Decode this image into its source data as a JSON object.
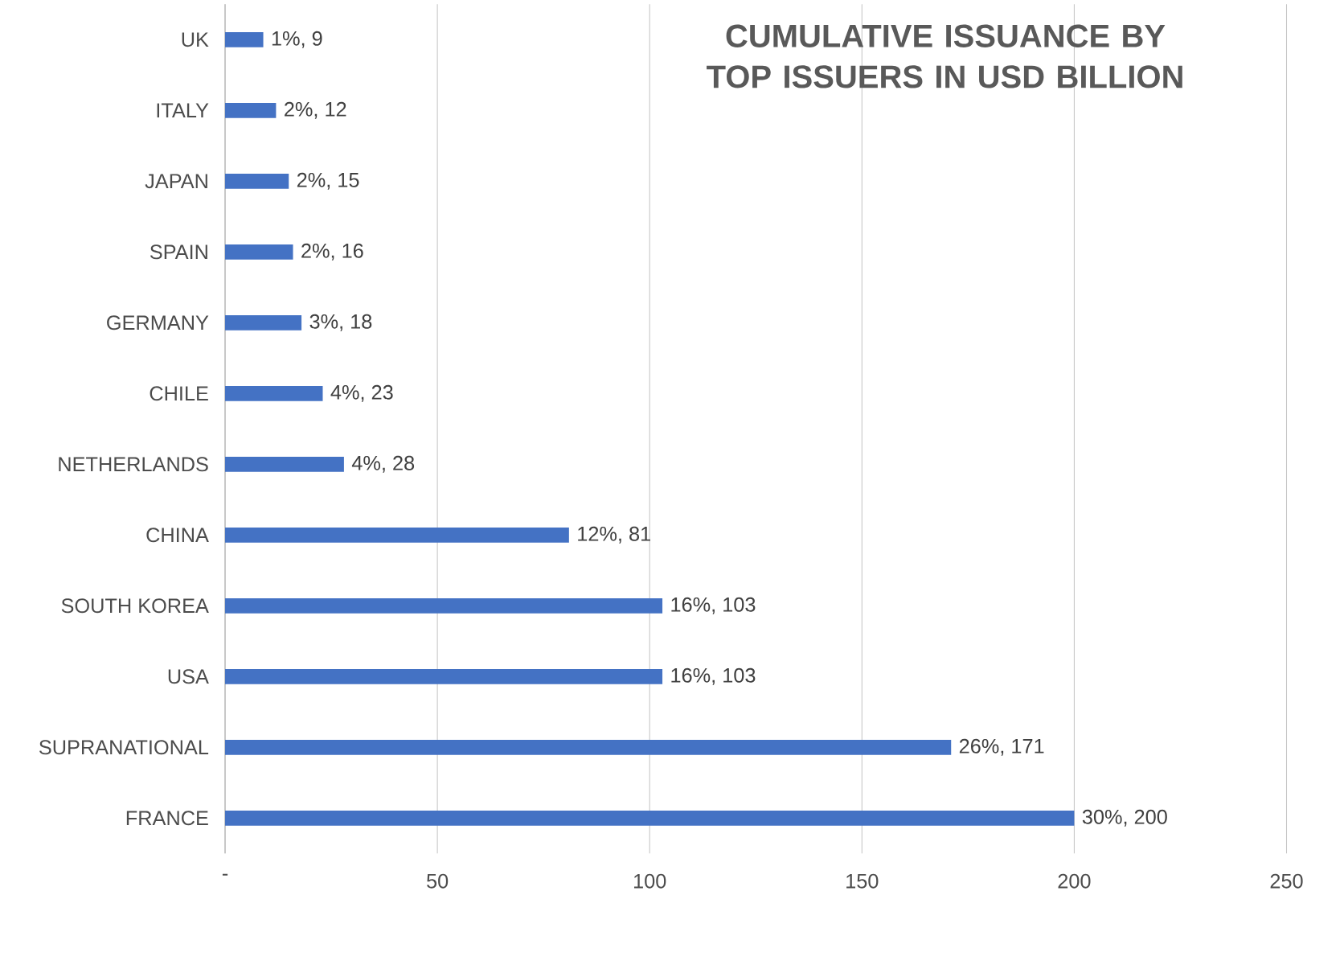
{
  "chart_data": {
    "type": "bar",
    "orientation": "horizontal",
    "title": "CUMULATIVE ISSUANCE BY TOP ISSUERS IN USD BILLION",
    "categories": [
      "UK",
      "ITALY",
      "JAPAN",
      "SPAIN",
      "GERMANY",
      "CHILE",
      "NETHERLANDS",
      "CHINA",
      "SOUTH KOREA",
      "USA",
      "SUPRANATIONAL",
      "FRANCE"
    ],
    "values": [
      9,
      12,
      15,
      16,
      18,
      23,
      28,
      81,
      103,
      103,
      171,
      200
    ],
    "value_labels": [
      "1%, 9",
      "2%, 12",
      "2%, 15",
      "2%, 16",
      "3%, 18",
      "4%, 23",
      "4%, 28",
      "12%, 81",
      "16%, 103",
      "16%, 103",
      "26%, 171",
      "30%, 200"
    ],
    "color": "#4472c4",
    "xlim": [
      0,
      250
    ],
    "xticks": [
      {
        "value": 0,
        "label": "-"
      },
      50,
      100,
      150,
      200,
      250
    ],
    "grid": "x"
  }
}
